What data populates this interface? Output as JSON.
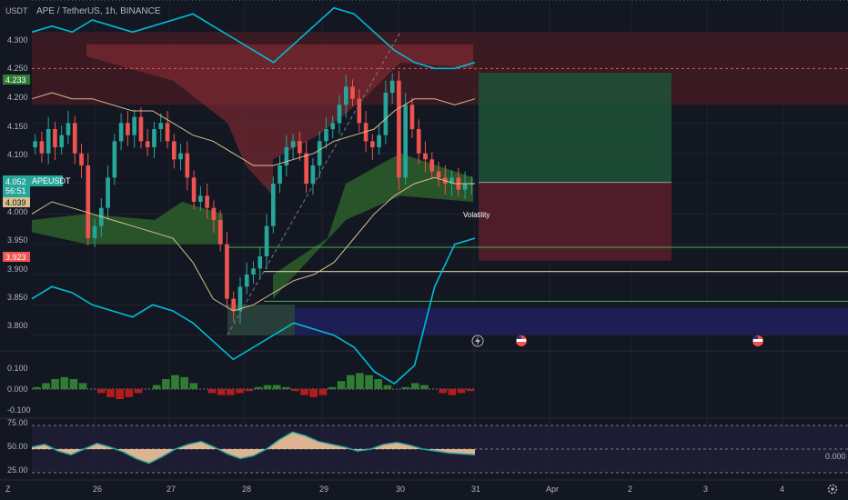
{
  "header": {
    "unit": "USDT",
    "symbol": "APE / TetherUS, 1h, BINANCE"
  },
  "price_pane": {
    "y_ticks": [
      "4.300",
      "4.250",
      "4.200",
      "4.150",
      "4.100",
      "4.050",
      "4.000",
      "3.950",
      "3.900",
      "3.850",
      "3.800"
    ],
    "badges": {
      "upper": "4.233",
      "symbol_name": "APEUSDT",
      "last_price": "4.052",
      "countdown": "56:51",
      "lower_green": "4.039",
      "lower_red": "3.923"
    },
    "indicator_label": "Volatility"
  },
  "macd_pane": {
    "y_ticks": [
      "0.100",
      "0.000",
      "-0.100"
    ]
  },
  "rsi_pane": {
    "y_ticks": [
      "75.00",
      "50.00",
      "25.00"
    ],
    "right_value": "0.000"
  },
  "x_axis": {
    "labels": [
      "26",
      "27",
      "28",
      "29",
      "30",
      "31",
      "Apr",
      "2",
      "3",
      "4"
    ]
  },
  "footer": {
    "zoom_icon": "Z",
    "gear_icon": "gear"
  },
  "colors": {
    "bg": "#131722",
    "up": "#26a69a",
    "down": "#ef5350",
    "bb": "#00bcd4",
    "ma": "#d9c08a",
    "green_fill": "#2e5e2a",
    "red_fill": "#7a1f27"
  },
  "chart_data": {
    "type": "candlestick",
    "x_labels": [
      "26",
      "27",
      "28",
      "29",
      "30",
      "31",
      "Apr",
      "2",
      "3",
      "4"
    ],
    "ylim": [
      3.78,
      4.32
    ],
    "close_series": [
      4.12,
      4.1,
      4.14,
      4.11,
      4.13,
      4.15,
      4.1,
      4.08,
      3.96,
      3.98,
      4.01,
      4.06,
      4.12,
      4.15,
      4.13,
      4.16,
      4.12,
      4.11,
      4.14,
      4.15,
      4.12,
      4.09,
      4.1,
      4.06,
      4.02,
      4.03,
      4.01,
      3.99,
      3.95,
      3.86,
      3.84,
      3.88,
      3.9,
      3.91,
      3.93,
      3.98,
      4.05,
      4.08,
      4.11,
      4.12,
      4.1,
      4.05,
      4.08,
      4.12,
      4.14,
      4.15,
      4.18,
      4.21,
      4.19,
      4.15,
      4.12,
      4.11,
      4.13,
      4.2,
      4.22,
      4.06,
      4.18,
      4.14,
      4.1,
      4.09,
      4.07,
      4.06,
      4.05,
      4.06,
      4.04,
      4.05,
      4.05
    ],
    "last_price": 4.052,
    "position": {
      "entry": 4.052,
      "take_profit": 4.233,
      "stop_loss": 3.923
    }
  }
}
